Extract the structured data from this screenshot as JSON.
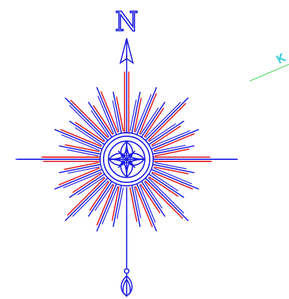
{
  "compass": {
    "north_label": "N",
    "ray_count": 32,
    "colors": {
      "blue": "#1a1ae6",
      "red": "#e61a1a",
      "edge_line": "#37d84a",
      "edge_text": "#19c7d6"
    }
  },
  "edge_annotation": {
    "text": "K"
  }
}
